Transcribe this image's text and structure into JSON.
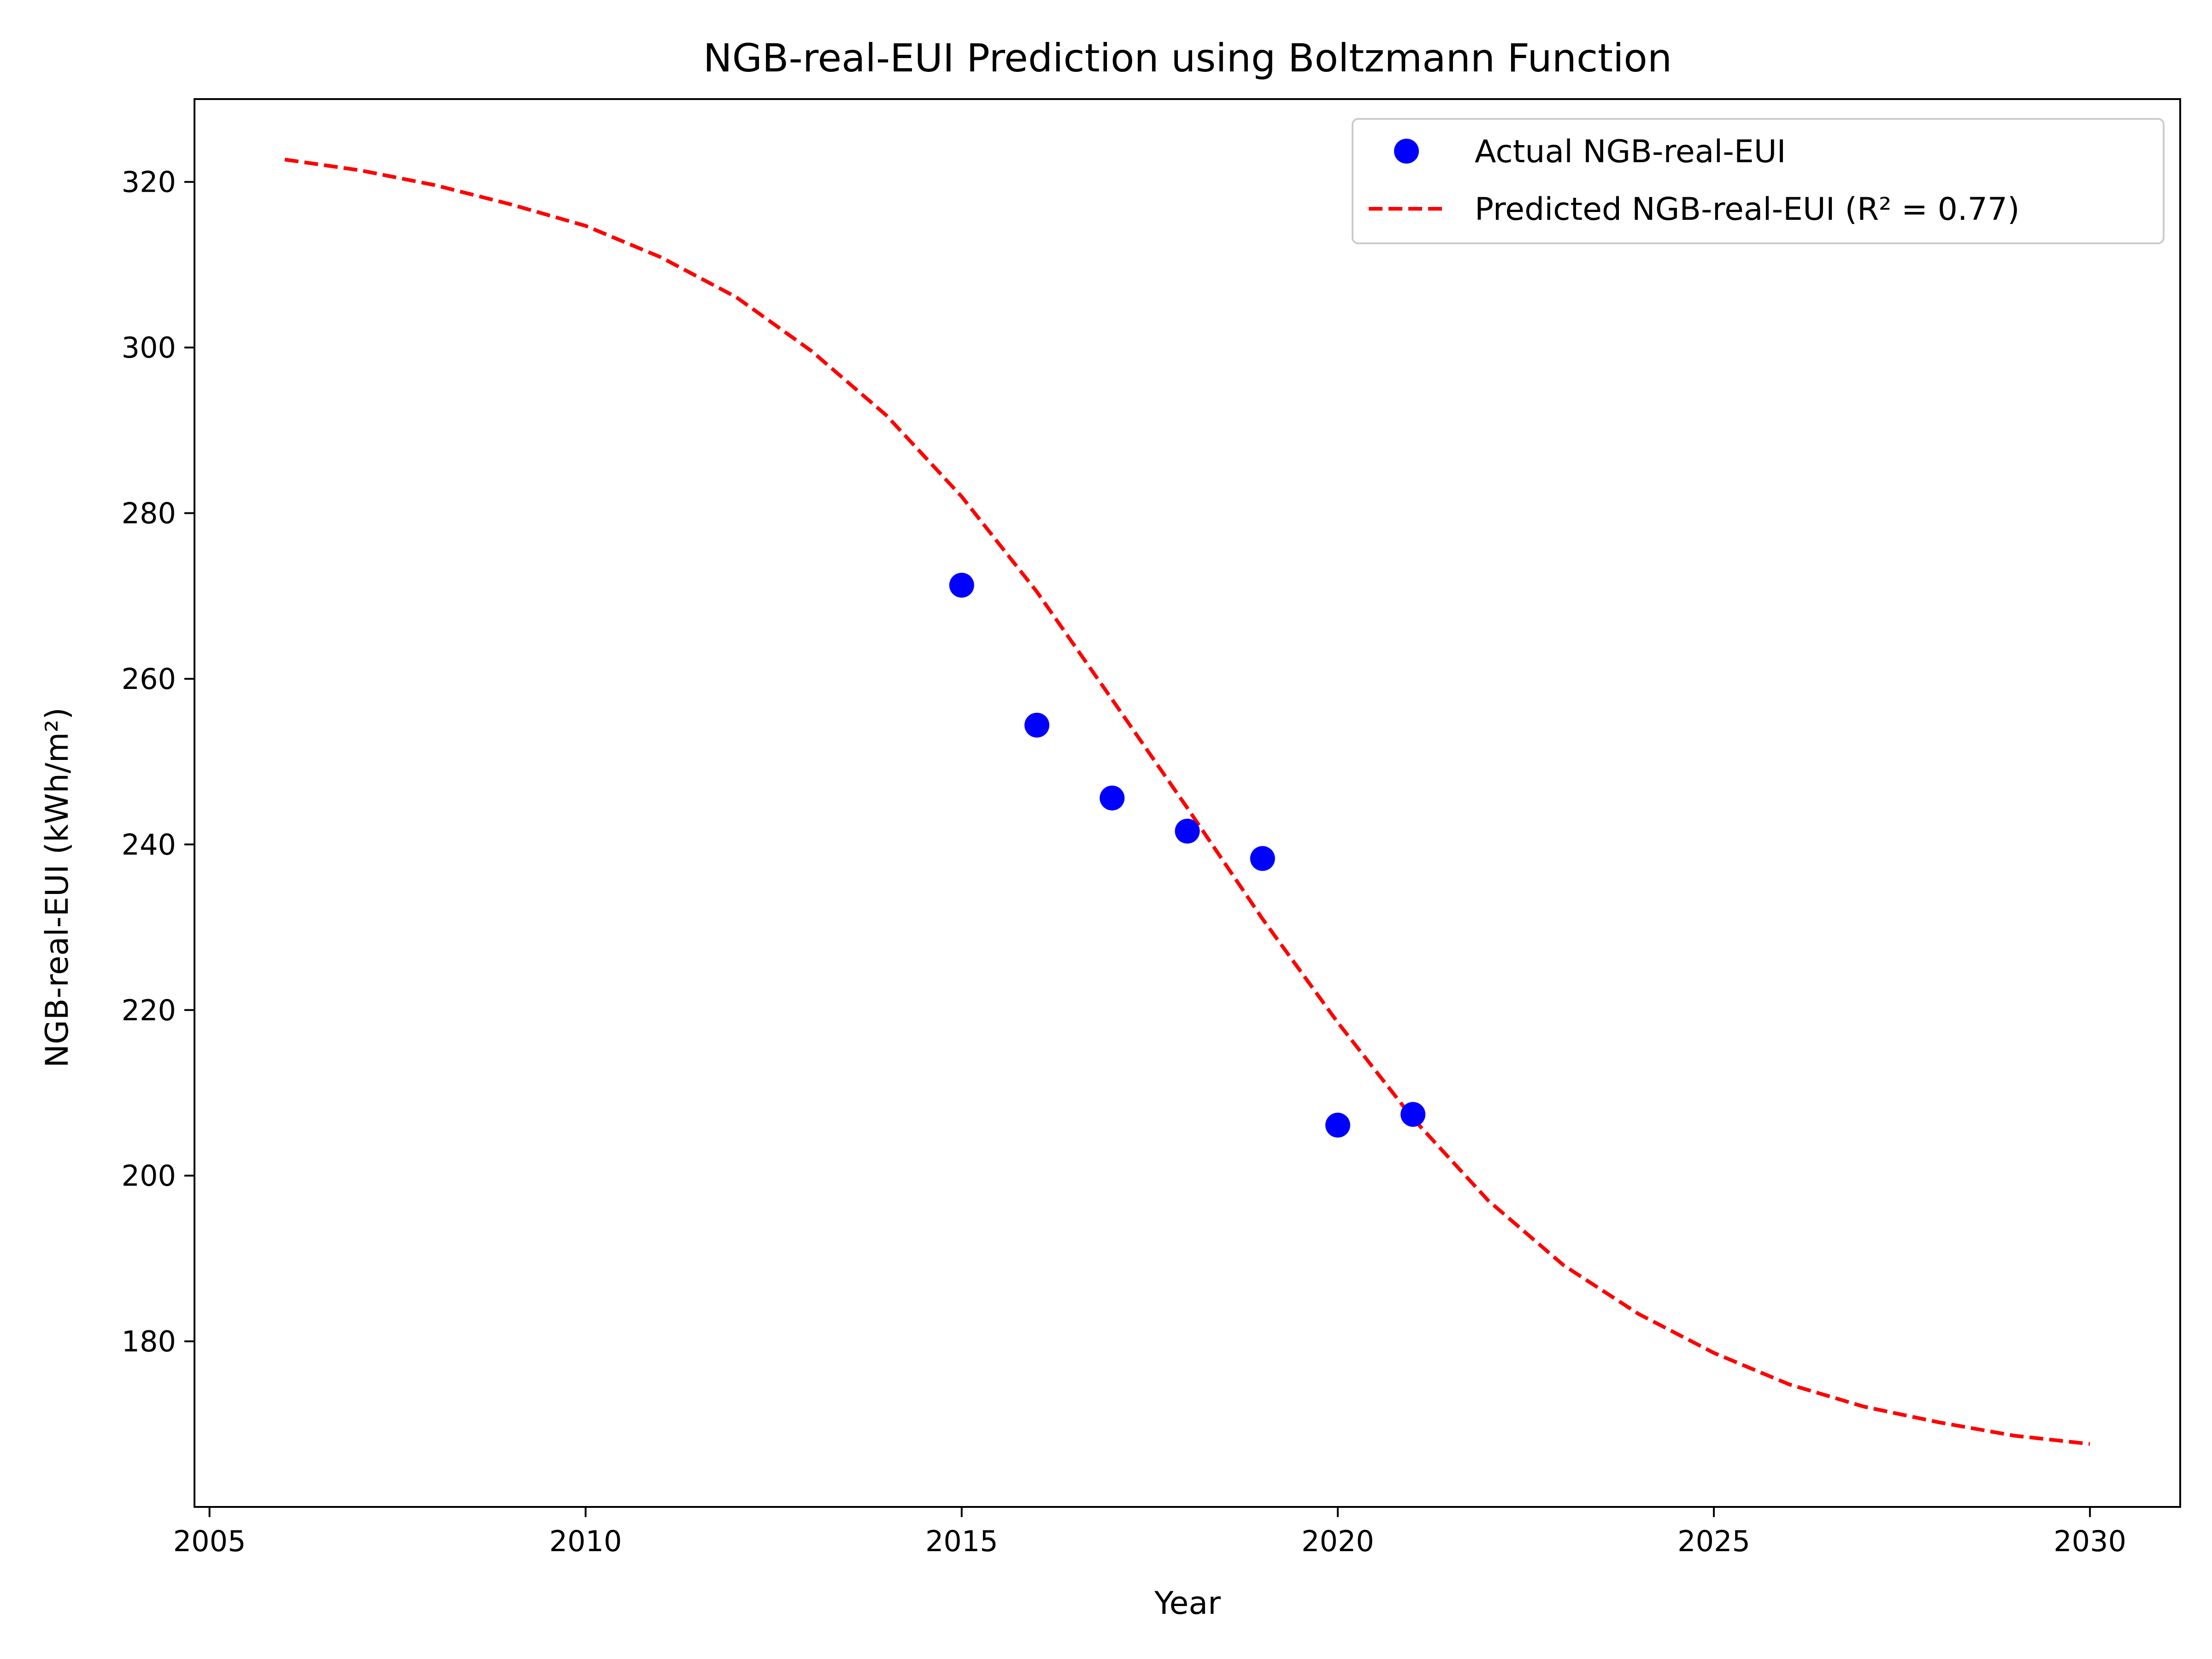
{
  "chart_data": {
    "type": "scatter",
    "title": "NGB-real-EUI Prediction using Boltzmann Function",
    "xlabel": "Year",
    "ylabel": "NGB-real-EUI (kWh/m²)",
    "xlim": [
      2004.8,
      2031.2
    ],
    "ylim": [
      160,
      330
    ],
    "x_ticks": [
      2005,
      2010,
      2015,
      2020,
      2025,
      2030
    ],
    "x_tick_labels": [
      "2005",
      "2010",
      "2015",
      "2020",
      "2025",
      "2030"
    ],
    "y_ticks": [
      180,
      200,
      220,
      240,
      260,
      280,
      300,
      320
    ],
    "y_tick_labels": [
      "180",
      "200",
      "220",
      "240",
      "260",
      "280",
      "300",
      "320"
    ],
    "grid": false,
    "legend_position": "top-right",
    "series": [
      {
        "name": "Actual NGB-real-EUI",
        "kind": "markers",
        "color": "#0000ff",
        "x": [
          2015,
          2016,
          2017,
          2018,
          2019,
          2020,
          2021
        ],
        "y": [
          271.3,
          254.4,
          245.6,
          241.6,
          238.3,
          206.1,
          207.4
        ]
      },
      {
        "name": "Predicted NGB-real-EUI (R² = 0.77)",
        "kind": "dashed-line",
        "color": "#ff0000",
        "x": [
          2006,
          2007,
          2008,
          2009,
          2010,
          2011,
          2012,
          2013,
          2014,
          2015,
          2016,
          2017,
          2018,
          2019,
          2020,
          2021,
          2022,
          2023,
          2024,
          2025,
          2026,
          2027,
          2028,
          2029,
          2030
        ],
        "y": [
          322.7,
          321.4,
          319.6,
          317.3,
          314.7,
          310.9,
          306.1,
          299.6,
          291.8,
          282.0,
          270.5,
          257.5,
          244.4,
          231.0,
          218.5,
          206.9,
          197.0,
          189.2,
          183.3,
          178.6,
          174.8,
          172.1,
          170.2,
          168.6,
          167.6
        ]
      }
    ]
  }
}
